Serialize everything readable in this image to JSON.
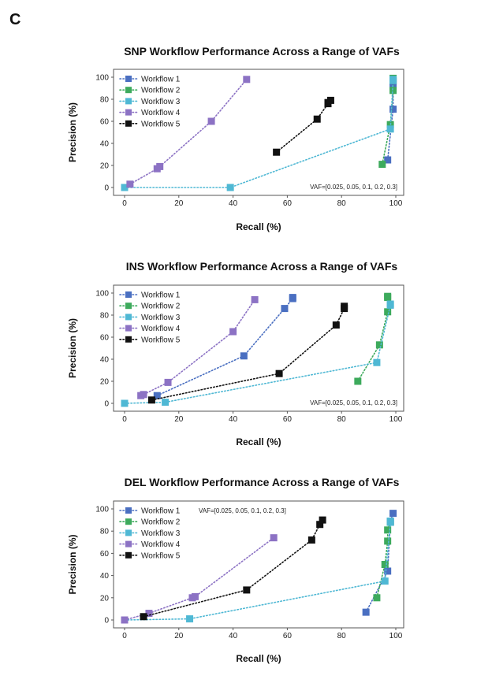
{
  "panel_label": "C",
  "chart_data": [
    {
      "type": "line",
      "title": "SNP Workflow Performance Across a Range of VAFs",
      "xlabel": "Recall (%)",
      "ylabel": "Precision (%)",
      "xlim": [
        0,
        100
      ],
      "ylim": [
        0,
        100
      ],
      "xticks": [
        0,
        20,
        40,
        60,
        80,
        100
      ],
      "yticks": [
        0,
        20,
        40,
        60,
        80,
        100
      ],
      "grid": false,
      "legend_position": "top-left",
      "annotation": "VAF=[0.025, 0.05, 0.1, 0.2, 0.3]",
      "annotation_position": "bottom-right",
      "series": [
        {
          "name": "Workflow 1",
          "color": "#4a6fc1",
          "points": [
            [
              97,
              25
            ],
            [
              99,
              71
            ],
            [
              99,
              92
            ],
            [
              99,
              96
            ],
            [
              99,
              97
            ]
          ]
        },
        {
          "name": "Workflow 2",
          "color": "#3daa5c",
          "points": [
            [
              95,
              21
            ],
            [
              98,
              57
            ],
            [
              99,
              88
            ],
            [
              99,
              97
            ],
            [
              99,
              99
            ]
          ]
        },
        {
          "name": "Workflow 3",
          "color": "#4fb8d4",
          "points": [
            [
              0,
              0
            ],
            [
              39,
              0
            ],
            [
              98,
              53
            ],
            [
              99,
              97
            ],
            [
              99,
              98
            ]
          ]
        },
        {
          "name": "Workflow 4",
          "color": "#8c72c4",
          "points": [
            [
              2,
              3
            ],
            [
              12,
              17
            ],
            [
              13,
              19
            ],
            [
              32,
              60
            ],
            [
              45,
              98
            ]
          ]
        },
        {
          "name": "Workflow 5",
          "color": "#111111",
          "points": [
            [
              56,
              32
            ],
            [
              71,
              62
            ],
            [
              75,
              76
            ],
            [
              75,
              77
            ],
            [
              76,
              79
            ]
          ]
        }
      ]
    },
    {
      "type": "line",
      "title": "INS Workflow Performance Across a Range of VAFs",
      "xlabel": "Recall (%)",
      "ylabel": "Precision (%)",
      "xlim": [
        0,
        100
      ],
      "ylim": [
        0,
        100
      ],
      "xticks": [
        0,
        20,
        40,
        60,
        80,
        100
      ],
      "yticks": [
        0,
        20,
        40,
        60,
        80,
        100
      ],
      "grid": false,
      "legend_position": "top-left",
      "annotation": "VAF=[0.025, 0.05, 0.1, 0.2, 0.3]",
      "annotation_position": "bottom-right",
      "series": [
        {
          "name": "Workflow 1",
          "color": "#4a6fc1",
          "points": [
            [
              12,
              7
            ],
            [
              44,
              43
            ],
            [
              59,
              86
            ],
            [
              62,
              95
            ],
            [
              62,
              96
            ]
          ]
        },
        {
          "name": "Workflow 2",
          "color": "#3daa5c",
          "points": [
            [
              86,
              20
            ],
            [
              94,
              53
            ],
            [
              97,
              83
            ],
            [
              97,
              96
            ],
            [
              97,
              97
            ]
          ]
        },
        {
          "name": "Workflow 3",
          "color": "#4fb8d4",
          "points": [
            [
              0,
              0
            ],
            [
              15,
              1
            ],
            [
              93,
              37
            ],
            [
              98,
              89
            ],
            [
              98,
              90
            ]
          ]
        },
        {
          "name": "Workflow 4",
          "color": "#8c72c4",
          "points": [
            [
              6,
              7
            ],
            [
              7,
              8
            ],
            [
              16,
              19
            ],
            [
              40,
              65
            ],
            [
              48,
              94
            ]
          ]
        },
        {
          "name": "Workflow 5",
          "color": "#111111",
          "points": [
            [
              10,
              3
            ],
            [
              57,
              27
            ],
            [
              78,
              71
            ],
            [
              81,
              86
            ],
            [
              81,
              88
            ]
          ]
        }
      ]
    },
    {
      "type": "line",
      "title": "DEL Workflow Performance Across a Range of VAFs",
      "xlabel": "Recall (%)",
      "ylabel": "Precision (%)",
      "xlim": [
        0,
        100
      ],
      "ylim": [
        0,
        100
      ],
      "xticks": [
        0,
        20,
        40,
        60,
        80,
        100
      ],
      "yticks": [
        0,
        20,
        40,
        60,
        80,
        100
      ],
      "grid": false,
      "legend_position": "top-left",
      "annotation": "VAF=[0.025, 0.05, 0.1, 0.2, 0.3]",
      "annotation_position": "top-center",
      "series": [
        {
          "name": "Workflow 1",
          "color": "#4a6fc1",
          "points": [
            [
              89,
              7
            ],
            [
              97,
              44
            ],
            [
              98,
              88
            ],
            [
              98,
              89
            ],
            [
              99,
              96
            ]
          ]
        },
        {
          "name": "Workflow 2",
          "color": "#3daa5c",
          "points": [
            [
              93,
              20
            ],
            [
              96,
              50
            ],
            [
              97,
              71
            ],
            [
              97,
              81
            ],
            [
              98,
              88
            ]
          ]
        },
        {
          "name": "Workflow 3",
          "color": "#4fb8d4",
          "points": [
            [
              0,
              0
            ],
            [
              24,
              1
            ],
            [
              96,
              35
            ],
            [
              98,
              88
            ],
            [
              98,
              89
            ]
          ]
        },
        {
          "name": "Workflow 4",
          "color": "#8c72c4",
          "points": [
            [
              0,
              0
            ],
            [
              9,
              6
            ],
            [
              25,
              20
            ],
            [
              26,
              21
            ],
            [
              55,
              74
            ]
          ]
        },
        {
          "name": "Workflow 5",
          "color": "#111111",
          "points": [
            [
              7,
              3
            ],
            [
              45,
              27
            ],
            [
              69,
              72
            ],
            [
              72,
              86
            ],
            [
              73,
              90
            ]
          ]
        }
      ]
    }
  ]
}
